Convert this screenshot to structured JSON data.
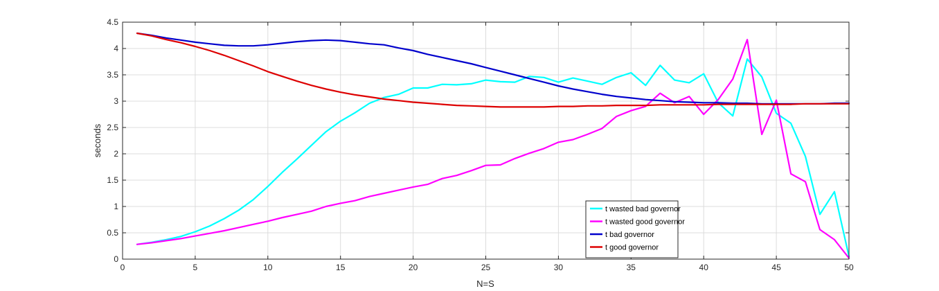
{
  "chart_data": {
    "type": "line",
    "xlabel": "N=S",
    "ylabel": "seconds",
    "xlim": [
      0,
      50
    ],
    "ylim": [
      0,
      4.5
    ],
    "xticks": [
      0,
      5,
      10,
      15,
      20,
      25,
      30,
      35,
      40,
      45,
      50
    ],
    "yticks": [
      0,
      0.5,
      1,
      1.5,
      2,
      2.5,
      3,
      3.5,
      4,
      4.5
    ],
    "grid": true,
    "legend_position": "bottom-center",
    "x": [
      1,
      2,
      3,
      4,
      5,
      6,
      7,
      8,
      9,
      10,
      11,
      12,
      13,
      14,
      15,
      16,
      17,
      18,
      19,
      20,
      21,
      22,
      23,
      24,
      25,
      26,
      27,
      28,
      29,
      30,
      31,
      32,
      33,
      34,
      35,
      36,
      37,
      38,
      39,
      40,
      41,
      42,
      43,
      44,
      45,
      46,
      47,
      48,
      49,
      50
    ],
    "series": [
      {
        "name": "t wasted bad governor",
        "color": "#00ffff",
        "values": [
          0.28,
          0.32,
          0.37,
          0.43,
          0.52,
          0.63,
          0.77,
          0.93,
          1.13,
          1.38,
          1.65,
          1.9,
          2.16,
          2.42,
          2.62,
          2.78,
          2.96,
          3.07,
          3.13,
          3.25,
          3.25,
          3.32,
          3.31,
          3.33,
          3.4,
          3.37,
          3.36,
          3.47,
          3.45,
          3.36,
          3.44,
          3.38,
          3.32,
          3.45,
          3.54,
          3.3,
          3.68,
          3.4,
          3.35,
          3.52,
          2.97,
          2.72,
          3.8,
          3.46,
          2.77,
          2.58,
          1.95,
          0.85,
          1.28,
          0.05
        ]
      },
      {
        "name": "t wasted good governor",
        "color": "#ff00ff",
        "values": [
          0.28,
          0.31,
          0.35,
          0.39,
          0.44,
          0.49,
          0.54,
          0.6,
          0.66,
          0.72,
          0.79,
          0.85,
          0.91,
          1.0,
          1.06,
          1.11,
          1.19,
          1.25,
          1.31,
          1.37,
          1.42,
          1.53,
          1.59,
          1.68,
          1.78,
          1.79,
          1.91,
          2.01,
          2.1,
          2.22,
          2.27,
          2.37,
          2.48,
          2.71,
          2.82,
          2.9,
          3.15,
          2.97,
          3.09,
          2.75,
          3.03,
          3.42,
          4.17,
          2.37,
          3.02,
          1.62,
          1.47,
          0.56,
          0.37,
          0.02
        ]
      },
      {
        "name": "t bad governor",
        "color": "#0000cc",
        "values": [
          4.29,
          4.25,
          4.2,
          4.16,
          4.12,
          4.09,
          4.06,
          4.05,
          4.05,
          4.07,
          4.1,
          4.13,
          4.15,
          4.16,
          4.15,
          4.12,
          4.09,
          4.07,
          4.01,
          3.96,
          3.89,
          3.83,
          3.77,
          3.71,
          3.64,
          3.57,
          3.5,
          3.43,
          3.36,
          3.29,
          3.23,
          3.18,
          3.13,
          3.09,
          3.06,
          3.03,
          3.01,
          2.99,
          2.98,
          2.97,
          2.97,
          2.96,
          2.96,
          2.95,
          2.95,
          2.95,
          2.95,
          2.95,
          2.96,
          2.96
        ]
      },
      {
        "name": "t good governor",
        "color": "#dd0000",
        "values": [
          4.29,
          4.24,
          4.17,
          4.11,
          4.04,
          3.96,
          3.87,
          3.77,
          3.67,
          3.56,
          3.47,
          3.38,
          3.3,
          3.23,
          3.17,
          3.12,
          3.08,
          3.04,
          3.01,
          2.98,
          2.96,
          2.94,
          2.92,
          2.91,
          2.9,
          2.89,
          2.89,
          2.89,
          2.89,
          2.9,
          2.9,
          2.91,
          2.91,
          2.92,
          2.92,
          2.92,
          2.93,
          2.93,
          2.93,
          2.93,
          2.94,
          2.94,
          2.94,
          2.94,
          2.94,
          2.94,
          2.95,
          2.95,
          2.95,
          2.95
        ]
      }
    ]
  }
}
